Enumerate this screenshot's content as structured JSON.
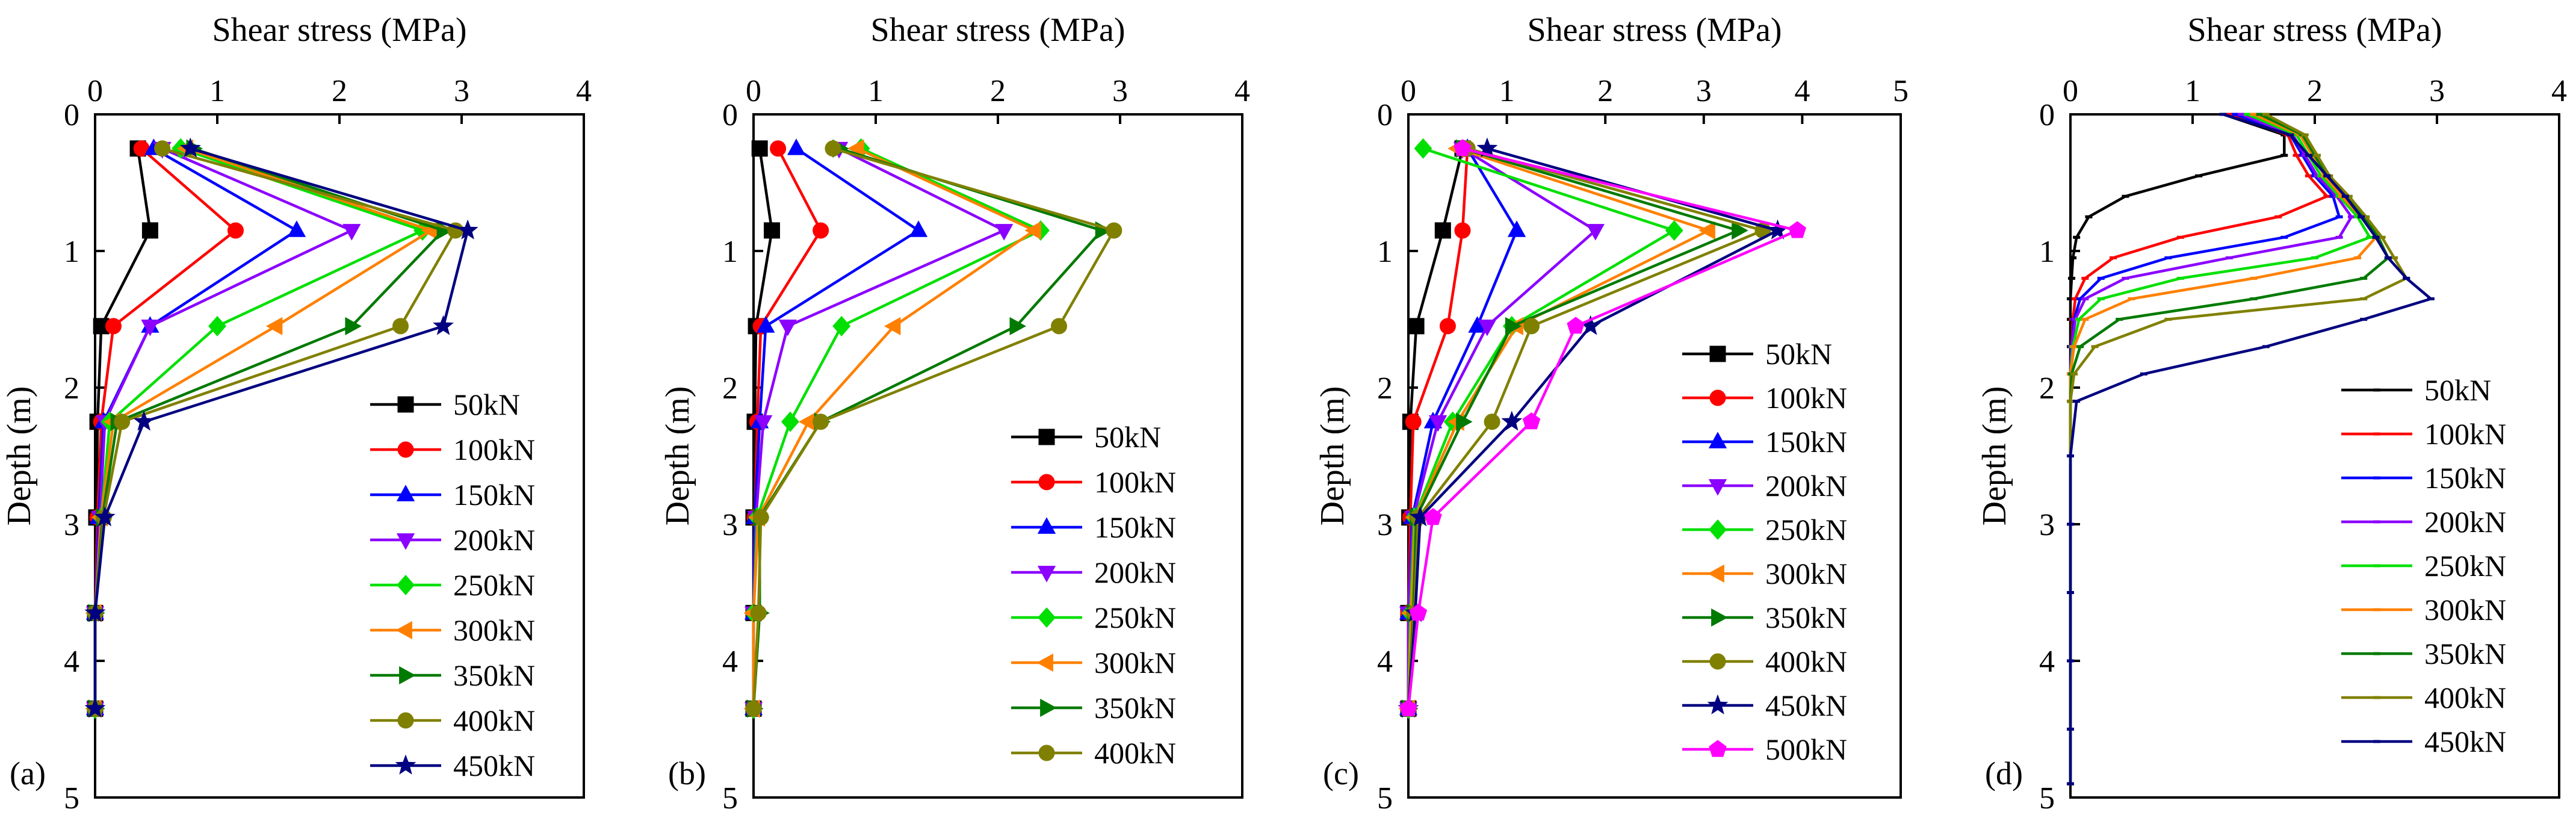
{
  "chart_data": [
    {
      "type": "line",
      "panel_label": "(a)",
      "xlabel": "Shear stress (MPa)",
      "ylabel": "Depth (m)",
      "xlim": [
        0,
        4
      ],
      "ylim": [
        0,
        5
      ],
      "x_axis_position": "top",
      "y_inverted": true,
      "xticks": [
        "0",
        "1",
        "2",
        "3",
        "4"
      ],
      "yticks": [
        "0",
        "1",
        "2",
        "3",
        "4",
        "5"
      ],
      "legend_position": "lower-right",
      "depths": [
        0.25,
        0.85,
        1.55,
        2.25,
        2.95,
        3.65,
        4.35
      ],
      "series": [
        {
          "name": "50kN",
          "color": "#000000",
          "marker": "square",
          "values": [
            0.35,
            0.45,
            0.05,
            0.02,
            0.01,
            0.0,
            0.0
          ]
        },
        {
          "name": "100kN",
          "color": "#ff0000",
          "marker": "circle",
          "values": [
            0.38,
            1.15,
            0.15,
            0.05,
            0.02,
            0.0,
            0.0
          ]
        },
        {
          "name": "150kN",
          "color": "#0000ff",
          "marker": "triangle-up",
          "values": [
            0.48,
            1.65,
            0.45,
            0.07,
            0.03,
            0.0,
            0.0
          ]
        },
        {
          "name": "200kN",
          "color": "#8b00ff",
          "marker": "triangle-down",
          "values": [
            0.55,
            2.1,
            0.45,
            0.08,
            0.04,
            0.0,
            0.0
          ]
        },
        {
          "name": "250kN",
          "color": "#00e000",
          "marker": "diamond",
          "values": [
            0.7,
            2.68,
            1.0,
            0.12,
            0.05,
            0.0,
            0.0
          ]
        },
        {
          "name": "300kN",
          "color": "#ff8000",
          "marker": "triangle-left",
          "values": [
            0.75,
            2.75,
            1.48,
            0.15,
            0.05,
            0.0,
            0.0
          ]
        },
        {
          "name": "350kN",
          "color": "#007a00",
          "marker": "triangle-right",
          "values": [
            0.8,
            2.85,
            2.1,
            0.18,
            0.06,
            0.0,
            0.0
          ]
        },
        {
          "name": "400kN",
          "color": "#808000",
          "marker": "circle",
          "values": [
            0.55,
            2.95,
            2.5,
            0.22,
            0.07,
            0.0,
            0.0
          ]
        },
        {
          "name": "450kN",
          "color": "#000080",
          "marker": "star",
          "values": [
            0.78,
            3.05,
            2.85,
            0.4,
            0.08,
            0.0,
            0.0
          ]
        }
      ]
    },
    {
      "type": "line",
      "panel_label": "(b)",
      "xlabel": "Shear stress (MPa)",
      "ylabel": "Depth (m)",
      "xlim": [
        0,
        4
      ],
      "ylim": [
        0,
        5
      ],
      "x_axis_position": "top",
      "y_inverted": true,
      "xticks": [
        "0",
        "1",
        "2",
        "3",
        "4"
      ],
      "yticks": [
        "0",
        "1",
        "2",
        "3",
        "4",
        "5"
      ],
      "legend_position": "lower-right",
      "depths": [
        0.25,
        0.85,
        1.55,
        2.25,
        2.95,
        3.65,
        4.35
      ],
      "series": [
        {
          "name": "50kN",
          "color": "#000000",
          "marker": "square",
          "values": [
            0.05,
            0.15,
            0.02,
            0.01,
            0.0,
            0.0,
            0.0
          ]
        },
        {
          "name": "100kN",
          "color": "#ff0000",
          "marker": "circle",
          "values": [
            0.2,
            0.55,
            0.06,
            0.03,
            0.01,
            0.0,
            0.0
          ]
        },
        {
          "name": "150kN",
          "color": "#0000ff",
          "marker": "triangle-up",
          "values": [
            0.35,
            1.35,
            0.1,
            0.05,
            0.01,
            0.0,
            0.0
          ]
        },
        {
          "name": "200kN",
          "color": "#8b00ff",
          "marker": "triangle-down",
          "values": [
            0.7,
            2.05,
            0.28,
            0.08,
            0.02,
            0.0,
            0.0
          ]
        },
        {
          "name": "250kN",
          "color": "#00e000",
          "marker": "diamond",
          "values": [
            0.88,
            2.35,
            0.72,
            0.3,
            0.03,
            0.0,
            0.0
          ]
        },
        {
          "name": "300kN",
          "color": "#ff8000",
          "marker": "triangle-left",
          "values": [
            0.85,
            2.3,
            1.15,
            0.45,
            0.04,
            0.0,
            0.0
          ]
        },
        {
          "name": "350kN",
          "color": "#007a00",
          "marker": "triangle-right",
          "values": [
            0.7,
            2.85,
            2.15,
            0.55,
            0.05,
            0.05,
            0.0
          ]
        },
        {
          "name": "400kN",
          "color": "#808000",
          "marker": "circle",
          "values": [
            0.65,
            2.95,
            2.5,
            0.55,
            0.06,
            0.04,
            0.0
          ]
        }
      ]
    },
    {
      "type": "line",
      "panel_label": "(c)",
      "xlabel": "Shear stress (MPa)",
      "ylabel": "Depth (m)",
      "xlim": [
        0,
        5
      ],
      "ylim": [
        0,
        5
      ],
      "x_axis_position": "top",
      "y_inverted": true,
      "xticks": [
        "0",
        "1",
        "2",
        "3",
        "4",
        "5"
      ],
      "yticks": [
        "0",
        "1",
        "2",
        "3",
        "4",
        "5"
      ],
      "legend_position": "lower-right",
      "depths": [
        0.25,
        0.85,
        1.55,
        2.25,
        2.95,
        3.65,
        4.35
      ],
      "series": [
        {
          "name": "50kN",
          "color": "#000000",
          "marker": "square",
          "values": [
            0.55,
            0.35,
            0.08,
            0.02,
            0.01,
            0.0,
            0.0
          ]
        },
        {
          "name": "100kN",
          "color": "#ff0000",
          "marker": "circle",
          "values": [
            0.6,
            0.55,
            0.4,
            0.05,
            0.02,
            0.0,
            0.0
          ]
        },
        {
          "name": "150kN",
          "color": "#0000ff",
          "marker": "triangle-up",
          "values": [
            0.6,
            1.1,
            0.7,
            0.25,
            0.04,
            0.0,
            0.0
          ]
        },
        {
          "name": "200kN",
          "color": "#8b00ff",
          "marker": "triangle-down",
          "values": [
            0.55,
            1.9,
            0.8,
            0.3,
            0.05,
            0.0,
            0.0
          ]
        },
        {
          "name": "250kN",
          "color": "#00e000",
          "marker": "diamond",
          "values": [
            0.15,
            2.7,
            1.05,
            0.45,
            0.06,
            0.02,
            0.0
          ]
        },
        {
          "name": "300kN",
          "color": "#ff8000",
          "marker": "triangle-left",
          "values": [
            0.5,
            3.05,
            1.1,
            0.5,
            0.07,
            0.03,
            0.0
          ]
        },
        {
          "name": "350kN",
          "color": "#007a00",
          "marker": "triangle-right",
          "values": [
            0.55,
            3.35,
            1.05,
            0.55,
            0.08,
            0.05,
            0.0
          ]
        },
        {
          "name": "400kN",
          "color": "#808000",
          "marker": "circle",
          "values": [
            0.6,
            3.6,
            1.25,
            0.85,
            0.1,
            0.06,
            0.0
          ]
        },
        {
          "name": "450kN",
          "color": "#000080",
          "marker": "star",
          "values": [
            0.8,
            3.75,
            1.85,
            1.05,
            0.12,
            0.07,
            0.0
          ]
        },
        {
          "name": "500kN",
          "color": "#ff00ff",
          "marker": "pentagon",
          "values": [
            0.55,
            3.95,
            1.7,
            1.25,
            0.25,
            0.1,
            0.0
          ]
        }
      ]
    },
    {
      "type": "line",
      "panel_label": "(d)",
      "xlabel": "Shear stress (MPa)",
      "ylabel": "Depth (m)",
      "xlim": [
        0,
        4
      ],
      "ylim": [
        0,
        5
      ],
      "x_axis_position": "top",
      "y_inverted": true,
      "xticks": [
        "0",
        "1",
        "2",
        "3",
        "4"
      ],
      "yticks": [
        "0",
        "1",
        "2",
        "3",
        "4",
        "5"
      ],
      "legend_position": "lower-right",
      "series": [
        {
          "name": "50kN",
          "color": "#000000",
          "marker": "dash",
          "depths": [
            0.0,
            0.15,
            0.3,
            0.45,
            0.6,
            0.75,
            0.9,
            1.05,
            1.2,
            1.35,
            1.5,
            1.7,
            1.9,
            2.1,
            2.5,
            3.0,
            3.5,
            4.0,
            4.5,
            4.9
          ],
          "values": [
            1.25,
            1.75,
            1.75,
            1.05,
            0.45,
            0.15,
            0.05,
            0.02,
            0.01,
            0.0,
            0.0,
            0.0,
            0.0,
            0.0,
            0.0,
            0.0,
            0.0,
            0.0,
            0.0,
            0.0
          ]
        },
        {
          "name": "100kN",
          "color": "#ff0000",
          "marker": "dash",
          "depths": [
            0.0,
            0.15,
            0.3,
            0.45,
            0.6,
            0.75,
            0.9,
            1.05,
            1.2,
            1.35,
            1.5,
            1.7,
            1.9,
            2.1,
            2.5,
            3.0,
            3.5,
            4.0,
            4.5,
            4.9
          ],
          "values": [
            1.3,
            1.78,
            1.85,
            1.95,
            2.1,
            1.7,
            0.9,
            0.35,
            0.12,
            0.04,
            0.02,
            0.01,
            0.0,
            0.0,
            0.0,
            0.0,
            0.0,
            0.0,
            0.0,
            0.0
          ]
        },
        {
          "name": "150kN",
          "color": "#0000ff",
          "marker": "dash",
          "depths": [
            0.0,
            0.15,
            0.3,
            0.45,
            0.6,
            0.75,
            0.9,
            1.05,
            1.2,
            1.35,
            1.5,
            1.7,
            1.9,
            2.1,
            2.5,
            3.0,
            3.5,
            4.0,
            4.5,
            4.9
          ],
          "values": [
            1.35,
            1.8,
            1.9,
            2.0,
            2.15,
            2.2,
            1.75,
            0.8,
            0.25,
            0.08,
            0.03,
            0.01,
            0.0,
            0.0,
            0.0,
            0.0,
            0.0,
            0.0,
            0.0,
            0.0
          ]
        },
        {
          "name": "200kN",
          "color": "#8b00ff",
          "marker": "dash",
          "depths": [
            0.0,
            0.15,
            0.3,
            0.45,
            0.6,
            0.75,
            0.9,
            1.05,
            1.2,
            1.35,
            1.5,
            1.7,
            1.9,
            2.1,
            2.5,
            3.0,
            3.5,
            4.0,
            4.5,
            4.9
          ],
          "values": [
            1.4,
            1.82,
            1.92,
            2.02,
            2.18,
            2.3,
            2.2,
            1.3,
            0.45,
            0.12,
            0.04,
            0.01,
            0.0,
            0.0,
            0.0,
            0.0,
            0.0,
            0.0,
            0.0,
            0.0
          ]
        },
        {
          "name": "250kN",
          "color": "#00e000",
          "marker": "dash",
          "depths": [
            0.0,
            0.15,
            0.3,
            0.45,
            0.6,
            0.75,
            0.9,
            1.05,
            1.2,
            1.35,
            1.5,
            1.7,
            1.9,
            2.1,
            2.5,
            3.0,
            3.5,
            4.0,
            4.5,
            4.9
          ],
          "values": [
            1.45,
            1.85,
            1.95,
            2.05,
            2.2,
            2.35,
            2.45,
            2.0,
            0.9,
            0.25,
            0.07,
            0.02,
            0.0,
            0.0,
            0.0,
            0.0,
            0.0,
            0.0,
            0.0,
            0.0
          ]
        },
        {
          "name": "300kN",
          "color": "#ff8000",
          "marker": "dash",
          "depths": [
            0.0,
            0.15,
            0.3,
            0.45,
            0.6,
            0.75,
            0.9,
            1.05,
            1.2,
            1.35,
            1.5,
            1.7,
            1.9,
            2.1,
            2.5,
            3.0,
            3.5,
            4.0,
            4.5,
            4.9
          ],
          "values": [
            1.5,
            1.88,
            1.98,
            2.08,
            2.22,
            2.38,
            2.5,
            2.35,
            1.5,
            0.5,
            0.12,
            0.03,
            0.0,
            0.0,
            0.0,
            0.0,
            0.0,
            0.0,
            0.0,
            0.0
          ]
        },
        {
          "name": "350kN",
          "color": "#007a00",
          "marker": "dash",
          "depths": [
            0.0,
            0.15,
            0.3,
            0.45,
            0.6,
            0.75,
            0.9,
            1.05,
            1.2,
            1.35,
            1.5,
            1.7,
            1.9,
            2.1,
            2.5,
            3.0,
            3.5,
            4.0,
            4.5,
            4.9
          ],
          "values": [
            1.55,
            1.9,
            2.0,
            2.1,
            2.25,
            2.4,
            2.52,
            2.6,
            2.4,
            1.5,
            0.4,
            0.08,
            0.01,
            0.0,
            0.0,
            0.0,
            0.0,
            0.0,
            0.0,
            0.0
          ]
        },
        {
          "name": "400kN",
          "color": "#808000",
          "marker": "dash",
          "depths": [
            0.0,
            0.15,
            0.3,
            0.45,
            0.6,
            0.75,
            0.9,
            1.05,
            1.2,
            1.35,
            1.5,
            1.7,
            1.9,
            2.1,
            2.5,
            3.0,
            3.5,
            4.0,
            4.5,
            4.9
          ],
          "values": [
            1.6,
            1.92,
            2.02,
            2.12,
            2.28,
            2.42,
            2.55,
            2.65,
            2.75,
            2.4,
            0.8,
            0.2,
            0.03,
            0.0,
            0.0,
            0.0,
            0.0,
            0.0,
            0.0,
            0.0
          ]
        },
        {
          "name": "450kN",
          "color": "#000080",
          "marker": "dash",
          "depths": [
            0.0,
            0.15,
            0.3,
            0.45,
            0.6,
            0.75,
            0.9,
            1.05,
            1.2,
            1.35,
            1.5,
            1.7,
            1.9,
            2.1,
            2.5,
            3.0,
            3.5,
            4.0,
            4.5,
            4.9
          ],
          "values": [
            1.25,
            1.8,
            1.95,
            2.1,
            2.25,
            2.38,
            2.5,
            2.6,
            2.75,
            2.95,
            2.4,
            1.6,
            0.6,
            0.05,
            0.0,
            0.0,
            0.0,
            0.0,
            0.0,
            0.0
          ]
        }
      ]
    }
  ]
}
